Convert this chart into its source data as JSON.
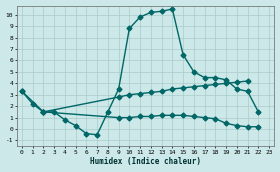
{
  "xlabel": "Humidex (Indice chaleur)",
  "bg_color": "#cce8e8",
  "grid_color": "#aacccc",
  "line_color": "#006666",
  "xlim": [
    -0.5,
    23.5
  ],
  "ylim": [
    -1.5,
    10.8
  ],
  "xticks": [
    0,
    1,
    2,
    3,
    4,
    5,
    6,
    7,
    8,
    9,
    10,
    11,
    12,
    13,
    14,
    15,
    16,
    17,
    18,
    19,
    20,
    21,
    22,
    23
  ],
  "yticks": [
    -1,
    0,
    1,
    2,
    3,
    4,
    5,
    6,
    7,
    8,
    9,
    10
  ],
  "series1_x": [
    0,
    1,
    2,
    3,
    4,
    5,
    6,
    7,
    8,
    9,
    10,
    11,
    12,
    13,
    14,
    15,
    16,
    17,
    18,
    19,
    20,
    21,
    22
  ],
  "series1_y": [
    3.3,
    2.2,
    1.5,
    1.5,
    0.8,
    0.3,
    -0.4,
    -0.5,
    1.5,
    3.5,
    8.8,
    9.8,
    10.2,
    10.3,
    10.5,
    6.5,
    5.0,
    4.5,
    4.5,
    4.3,
    3.5,
    3.3,
    1.5
  ],
  "series2_x": [
    0,
    2,
    9,
    10,
    11,
    12,
    13,
    14,
    15,
    16,
    17,
    18,
    19,
    20,
    21
  ],
  "series2_y": [
    3.3,
    1.5,
    2.8,
    3.0,
    3.1,
    3.2,
    3.3,
    3.5,
    3.6,
    3.7,
    3.8,
    3.9,
    4.0,
    4.1,
    4.2
  ],
  "series3_x": [
    2,
    9,
    10,
    11,
    12,
    13,
    14,
    15,
    16,
    17,
    18,
    19,
    20,
    21,
    22
  ],
  "series3_y": [
    1.5,
    1.0,
    1.0,
    1.1,
    1.1,
    1.2,
    1.2,
    1.2,
    1.1,
    1.0,
    0.9,
    0.5,
    0.3,
    0.2,
    0.2
  ],
  "markersize": 2.5,
  "linewidth": 1.0
}
